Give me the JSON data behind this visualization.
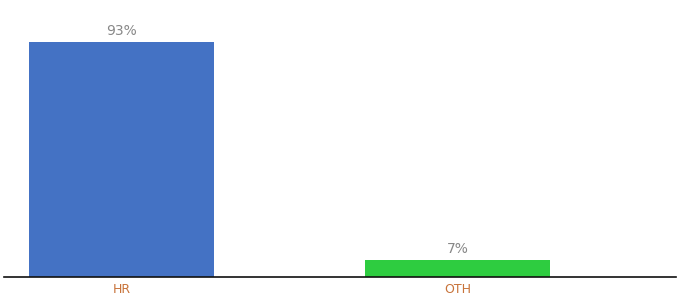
{
  "categories": [
    "HR",
    "OTH"
  ],
  "values": [
    93,
    7
  ],
  "bar_colors": [
    "#4472c4",
    "#2ecc40"
  ],
  "label_texts": [
    "93%",
    "7%"
  ],
  "label_color": "#888888",
  "ylim": [
    0,
    108
  ],
  "background_color": "#ffffff",
  "label_fontsize": 10,
  "tick_fontsize": 9,
  "tick_color": "#c8733a",
  "bar_width": 0.55,
  "xlim": [
    -0.35,
    1.65
  ]
}
